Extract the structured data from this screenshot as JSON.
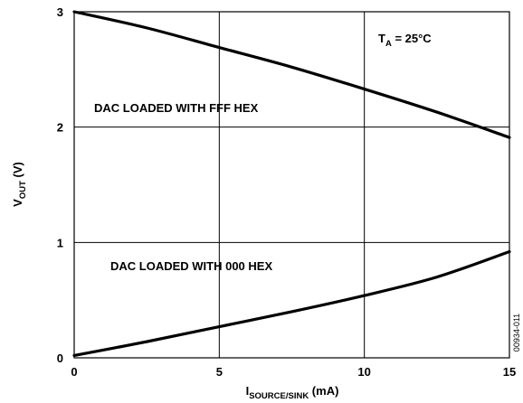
{
  "chart_data": {
    "type": "line",
    "title": "",
    "xlabel": {
      "main": "I",
      "sub": "SOURCE/SINK",
      "unit": " (mA)"
    },
    "ylabel": {
      "main": "V",
      "sub": "OUT",
      "unit": " (V)"
    },
    "xlim": [
      0,
      15
    ],
    "ylim": [
      0,
      3
    ],
    "x_ticks": [
      0,
      5,
      10,
      15
    ],
    "y_ticks": [
      0,
      1,
      2,
      3
    ],
    "x_tick_labels": [
      "0",
      "5",
      "10",
      "15"
    ],
    "y_tick_labels": [
      "0",
      "1",
      "2",
      "3"
    ],
    "grid": true,
    "series": [
      {
        "name": "",
        "x": [
          0,
          2.5,
          5,
          7.5,
          10,
          12.5,
          15
        ],
        "y": [
          3.0,
          2.86,
          2.69,
          2.52,
          2.33,
          2.13,
          1.91
        ]
      },
      {
        "name": "",
        "x": [
          0,
          2.5,
          5,
          7.5,
          10,
          12.5,
          15
        ],
        "y": [
          0.02,
          0.14,
          0.27,
          0.4,
          0.54,
          0.7,
          0.92
        ]
      }
    ],
    "annotations": {
      "ambient": {
        "main": "T",
        "sub": "A",
        "rest": " = 25°C"
      },
      "fff": "DAC LOADED WITH FFF HEX",
      "zero": "DAC LOADED WITH 000 HEX"
    },
    "figure_id": "00934-011"
  }
}
